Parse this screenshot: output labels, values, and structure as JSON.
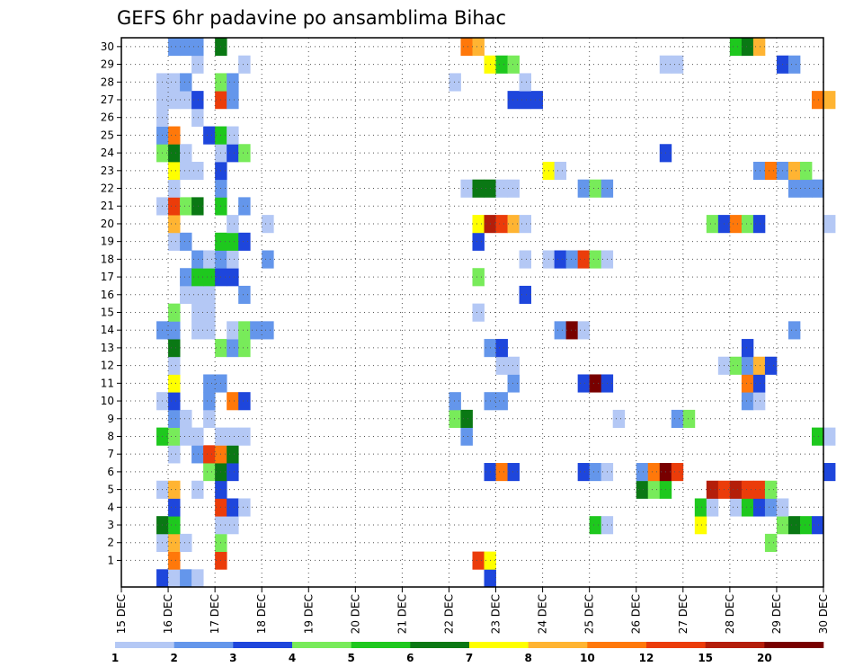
{
  "chart_data": {
    "type": "heatmap",
    "title": "GEFS 6hr padavine po ansamblima Bihac",
    "x_tick_labels": [
      "15 DEC",
      "16 DEC",
      "17 DEC",
      "18 DEC",
      "19 DEC",
      "20 DEC",
      "21 DEC",
      "22 DEC",
      "23 DEC",
      "24 DEC",
      "25 DEC",
      "26 DEC",
      "27 DEC",
      "28 DEC",
      "29 DEC",
      "30 DEC"
    ],
    "y_tick_labels": [
      "1",
      "2",
      "3",
      "4",
      "5",
      "6",
      "7",
      "8",
      "9",
      "10",
      "11",
      "12",
      "13",
      "14",
      "15",
      "16",
      "17",
      "18",
      "19",
      "20",
      "21",
      "22",
      "23",
      "24",
      "25",
      "26",
      "27",
      "28",
      "29",
      "30"
    ],
    "x_range": [
      "15 DEC 00",
      "30 DEC 00"
    ],
    "y_range": [
      0,
      30
    ],
    "steps_per_day": 4,
    "grid": true,
    "colorbar": {
      "placement": "bottom",
      "levels": [
        "1",
        "2",
        "3",
        "4",
        "5",
        "6",
        "7",
        "8",
        "10",
        "12",
        "15",
        "20"
      ],
      "colors": [
        "#b4c8f5",
        "#6496eb",
        "#1e46dc",
        "#78eb5a",
        "#1ec81e",
        "#0a7814",
        "#ffff00",
        "#ffb432",
        "#ff780a",
        "#eb3c0a",
        "#b41e0a",
        "#780000"
      ]
    },
    "class_keys": {
      "a": "1-2",
      "b": "2-3",
      "c": "3-4",
      "d": "4-5",
      "e": "5-6",
      "f": "6-7",
      "g": "7-8",
      "h": "8-10",
      "i": "10-12",
      "j": "12-15",
      "k": "15-20",
      "l": ">20"
    },
    "members": {
      "30": [
        [
          4,
          "b"
        ],
        [
          5,
          "b"
        ],
        [
          6,
          "b"
        ],
        [
          8,
          "f"
        ],
        [
          29,
          "i"
        ],
        [
          30,
          "h"
        ],
        [
          52,
          "e"
        ],
        [
          53,
          "f"
        ],
        [
          54,
          "h"
        ]
      ],
      "29": [
        [
          6,
          "a"
        ],
        [
          10,
          "a"
        ],
        [
          31,
          "g"
        ],
        [
          32,
          "e"
        ],
        [
          33,
          "d"
        ],
        [
          46,
          "a"
        ],
        [
          47,
          "a"
        ],
        [
          56,
          "c"
        ],
        [
          57,
          "b"
        ]
      ],
      "28": [
        [
          3,
          "a"
        ],
        [
          4,
          "a"
        ],
        [
          5,
          "b"
        ],
        [
          8,
          "d"
        ],
        [
          9,
          "b"
        ],
        [
          28,
          "a"
        ],
        [
          34,
          "a"
        ]
      ],
      "27": [
        [
          3,
          "a"
        ],
        [
          4,
          "a"
        ],
        [
          5,
          "a"
        ],
        [
          6,
          "c"
        ],
        [
          8,
          "j"
        ],
        [
          9,
          "b"
        ],
        [
          33,
          "c"
        ],
        [
          34,
          "c"
        ],
        [
          35,
          "c"
        ],
        [
          59,
          "i"
        ],
        [
          60,
          "h"
        ]
      ],
      "26": [
        [
          3,
          "a"
        ],
        [
          6,
          "a"
        ]
      ],
      "25": [
        [
          3,
          "b"
        ],
        [
          4,
          "i"
        ],
        [
          7,
          "c"
        ],
        [
          8,
          "e"
        ],
        [
          9,
          "a"
        ]
      ],
      "24": [
        [
          3,
          "d"
        ],
        [
          4,
          "f"
        ],
        [
          5,
          "a"
        ],
        [
          8,
          "a"
        ],
        [
          9,
          "c"
        ],
        [
          10,
          "d"
        ],
        [
          46,
          "c"
        ]
      ],
      "23": [
        [
          4,
          "g"
        ],
        [
          5,
          "a"
        ],
        [
          6,
          "a"
        ],
        [
          8,
          "c"
        ],
        [
          36,
          "g"
        ],
        [
          37,
          "a"
        ],
        [
          54,
          "b"
        ],
        [
          55,
          "i"
        ],
        [
          56,
          "b"
        ],
        [
          57,
          "h"
        ],
        [
          58,
          "d"
        ]
      ],
      "22": [
        [
          4,
          "a"
        ],
        [
          8,
          "b"
        ],
        [
          29,
          "a"
        ],
        [
          30,
          "f"
        ],
        [
          31,
          "f"
        ],
        [
          32,
          "a"
        ],
        [
          33,
          "a"
        ],
        [
          39,
          "b"
        ],
        [
          40,
          "d"
        ],
        [
          41,
          "b"
        ],
        [
          57,
          "b"
        ],
        [
          58,
          "b"
        ],
        [
          59,
          "b"
        ]
      ],
      "21": [
        [
          3,
          "a"
        ],
        [
          4,
          "j"
        ],
        [
          5,
          "d"
        ],
        [
          6,
          "f"
        ],
        [
          8,
          "e"
        ],
        [
          10,
          "b"
        ]
      ],
      "20": [
        [
          4,
          "h"
        ],
        [
          9,
          "a"
        ],
        [
          12,
          "a"
        ],
        [
          30,
          "g"
        ],
        [
          31,
          "k"
        ],
        [
          32,
          "j"
        ],
        [
          33,
          "h"
        ],
        [
          34,
          "a"
        ],
        [
          50,
          "d"
        ],
        [
          51,
          "c"
        ],
        [
          52,
          "i"
        ],
        [
          53,
          "d"
        ],
        [
          54,
          "c"
        ],
        [
          60,
          "a"
        ]
      ],
      "19": [
        [
          4,
          "a"
        ],
        [
          5,
          "b"
        ],
        [
          8,
          "e"
        ],
        [
          9,
          "e"
        ],
        [
          10,
          "c"
        ],
        [
          30,
          "c"
        ]
      ],
      "18": [
        [
          6,
          "b"
        ],
        [
          7,
          "a"
        ],
        [
          8,
          "b"
        ],
        [
          9,
          "a"
        ],
        [
          12,
          "b"
        ],
        [
          34,
          "a"
        ],
        [
          36,
          "a"
        ],
        [
          37,
          "c"
        ],
        [
          38,
          "b"
        ],
        [
          39,
          "j"
        ],
        [
          40,
          "d"
        ],
        [
          41,
          "a"
        ]
      ],
      "17": [
        [
          5,
          "b"
        ],
        [
          6,
          "e"
        ],
        [
          7,
          "e"
        ],
        [
          8,
          "c"
        ],
        [
          9,
          "c"
        ],
        [
          30,
          "d"
        ]
      ],
      "16": [
        [
          5,
          "a"
        ],
        [
          6,
          "a"
        ],
        [
          7,
          "a"
        ],
        [
          10,
          "b"
        ],
        [
          34,
          "c"
        ]
      ],
      "15": [
        [
          4,
          "d"
        ],
        [
          6,
          "a"
        ],
        [
          7,
          "a"
        ],
        [
          30,
          "a"
        ]
      ],
      "14": [
        [
          3,
          "b"
        ],
        [
          4,
          "b"
        ],
        [
          6,
          "a"
        ],
        [
          7,
          "a"
        ],
        [
          9,
          "a"
        ],
        [
          10,
          "d"
        ],
        [
          11,
          "b"
        ],
        [
          12,
          "b"
        ],
        [
          37,
          "b"
        ],
        [
          38,
          "l"
        ],
        [
          39,
          "a"
        ],
        [
          57,
          "b"
        ]
      ],
      "13": [
        [
          4,
          "f"
        ],
        [
          8,
          "d"
        ],
        [
          9,
          "b"
        ],
        [
          10,
          "d"
        ],
        [
          31,
          "b"
        ],
        [
          32,
          "c"
        ],
        [
          53,
          "c"
        ]
      ],
      "12": [
        [
          4,
          "a"
        ],
        [
          32,
          "a"
        ],
        [
          33,
          "a"
        ],
        [
          51,
          "a"
        ],
        [
          52,
          "d"
        ],
        [
          53,
          "b"
        ],
        [
          54,
          "h"
        ],
        [
          55,
          "c"
        ]
      ],
      "11": [
        [
          4,
          "g"
        ],
        [
          7,
          "b"
        ],
        [
          8,
          "b"
        ],
        [
          33,
          "b"
        ],
        [
          39,
          "c"
        ],
        [
          40,
          "l"
        ],
        [
          41,
          "c"
        ],
        [
          53,
          "i"
        ],
        [
          54,
          "c"
        ]
      ],
      "10": [
        [
          3,
          "a"
        ],
        [
          4,
          "c"
        ],
        [
          7,
          "b"
        ],
        [
          9,
          "i"
        ],
        [
          10,
          "c"
        ],
        [
          28,
          "b"
        ],
        [
          31,
          "b"
        ],
        [
          32,
          "b"
        ],
        [
          53,
          "b"
        ],
        [
          54,
          "a"
        ]
      ],
      "9": [
        [
          4,
          "b"
        ],
        [
          5,
          "a"
        ],
        [
          7,
          "a"
        ],
        [
          28,
          "d"
        ],
        [
          29,
          "f"
        ],
        [
          42,
          "a"
        ],
        [
          47,
          "b"
        ],
        [
          48,
          "d"
        ]
      ],
      "8": [
        [
          3,
          "e"
        ],
        [
          4,
          "d"
        ],
        [
          5,
          "a"
        ],
        [
          6,
          "a"
        ],
        [
          8,
          "a"
        ],
        [
          9,
          "a"
        ],
        [
          10,
          "a"
        ],
        [
          29,
          "b"
        ],
        [
          59,
          "e"
        ],
        [
          60,
          "a"
        ]
      ],
      "7": [
        [
          4,
          "a"
        ],
        [
          6,
          "b"
        ],
        [
          7,
          "j"
        ],
        [
          8,
          "i"
        ],
        [
          9,
          "f"
        ]
      ],
      "6": [
        [
          7,
          "d"
        ],
        [
          8,
          "f"
        ],
        [
          9,
          "c"
        ],
        [
          31,
          "c"
        ],
        [
          32,
          "i"
        ],
        [
          33,
          "c"
        ],
        [
          39,
          "c"
        ],
        [
          40,
          "b"
        ],
        [
          41,
          "a"
        ],
        [
          44,
          "b"
        ],
        [
          45,
          "i"
        ],
        [
          46,
          "l"
        ],
        [
          47,
          "j"
        ],
        [
          60,
          "c"
        ]
      ],
      "5": [
        [
          3,
          "a"
        ],
        [
          4,
          "h"
        ],
        [
          6,
          "a"
        ],
        [
          8,
          "c"
        ],
        [
          44,
          "f"
        ],
        [
          45,
          "d"
        ],
        [
          46,
          "e"
        ],
        [
          50,
          "k"
        ],
        [
          51,
          "j"
        ],
        [
          52,
          "k"
        ],
        [
          53,
          "j"
        ],
        [
          54,
          "j"
        ],
        [
          55,
          "d"
        ]
      ],
      "4": [
        [
          4,
          "c"
        ],
        [
          8,
          "j"
        ],
        [
          9,
          "c"
        ],
        [
          10,
          "a"
        ],
        [
          49,
          "e"
        ],
        [
          50,
          "a"
        ],
        [
          52,
          "a"
        ],
        [
          53,
          "e"
        ],
        [
          54,
          "c"
        ],
        [
          55,
          "b"
        ],
        [
          56,
          "a"
        ]
      ],
      "3": [
        [
          3,
          "f"
        ],
        [
          4,
          "e"
        ],
        [
          8,
          "a"
        ],
        [
          9,
          "a"
        ],
        [
          40,
          "e"
        ],
        [
          41,
          "a"
        ],
        [
          49,
          "g"
        ],
        [
          56,
          "d"
        ],
        [
          57,
          "f"
        ],
        [
          58,
          "e"
        ],
        [
          59,
          "c"
        ]
      ],
      "2": [
        [
          3,
          "a"
        ],
        [
          4,
          "h"
        ],
        [
          5,
          "a"
        ],
        [
          8,
          "d"
        ],
        [
          55,
          "d"
        ]
      ],
      "1": [
        [
          4,
          "i"
        ],
        [
          8,
          "j"
        ],
        [
          30,
          "j"
        ],
        [
          31,
          "g"
        ]
      ],
      "0": [
        [
          3,
          "c"
        ],
        [
          4,
          "a"
        ],
        [
          5,
          "b"
        ],
        [
          6,
          "a"
        ],
        [
          31,
          "c"
        ]
      ]
    }
  }
}
